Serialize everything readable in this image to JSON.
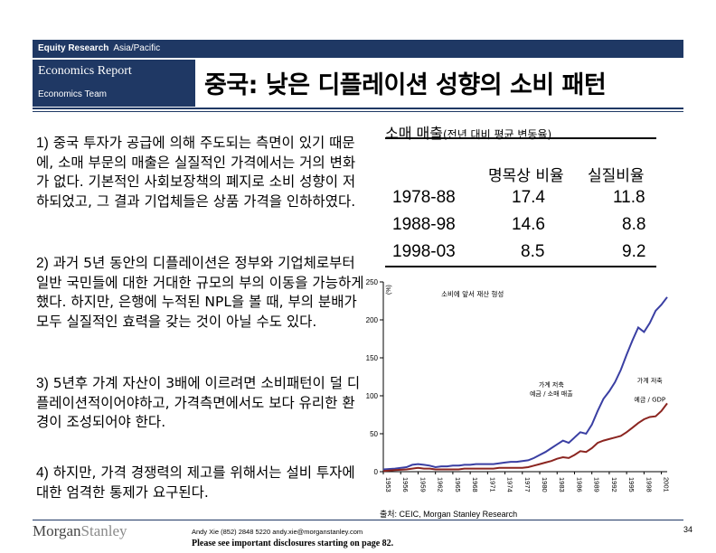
{
  "header": {
    "section": "Equity Research",
    "region": "Asia/Pacific",
    "report": "Economics Report",
    "team": "Economics Team",
    "title": "중국: 낮은 디플레이션 성향의 소비 패턴"
  },
  "points": [
    {
      "num": "1)",
      "text": "중국 투자가 공급에 의해 주도되는 측면이 있기 때문에, 소매 부문의 매출은 실질적인 가격에서는 거의 변화가 없다. 기본적인 사회보장책의 폐지로 소비 성향이 저하되었고, 그 결과 기업체들은 상품 가격을 인하하였다."
    },
    {
      "num": "2)",
      "text": "과거 5년 동안의 디플레이션은 정부와 기업체로부터 일반 국민들에 대한 거대한 규모의 부의 이동을 가능하게했다. 하지만, 은행에 누적된 NPL을 볼 때, 부의 분배가 모두 실질적인 효력을 갖는 것이 아닐 수도 있다."
    },
    {
      "num": "3)",
      "text": "5년후 가계 자산이 3배에 이르려면 소비패턴이 덜 디플레이션적이어야하고, 가격측면에서도 보다 유리한 환경이 조성되어야 한다."
    },
    {
      "num": "4)",
      "text": "하지만, 가격 경쟁력의 제고를 위해서는 설비 투자에 대한 엄격한 통제가 요구된다."
    }
  ],
  "table": {
    "title_main": "소매 매출",
    "title_sub": "(전년 대비 평균 변동율)",
    "headers": [
      "명목상 비율",
      "실질비율"
    ],
    "rows": [
      {
        "period": "1978-88",
        "nominal": "17.4",
        "real": "11.8"
      },
      {
        "period": "1988-98",
        "nominal": "14.6",
        "real": "8.8"
      },
      {
        "period": "1998-03",
        "nominal": "8.5",
        "real": "9.2"
      }
    ]
  },
  "chart_data": {
    "type": "line",
    "ylabel": "(%)",
    "ylim": [
      0,
      250
    ],
    "yticks": [
      0,
      50,
      100,
      150,
      200,
      250
    ],
    "xlim": [
      1953,
      2002
    ],
    "xticks": [
      "1953",
      "1956",
      "1959",
      "1962",
      "1965",
      "1968",
      "1971",
      "1974",
      "1977",
      "1980",
      "1983",
      "1986",
      "1989",
      "1992",
      "1995",
      "1998",
      "2001"
    ],
    "annotation_top": "소비에 앞서 재산 형성",
    "series": [
      {
        "name": "가계 저축 예금 / 소매 매출",
        "color": "#3a3fa3",
        "x": [
          1953,
          1955,
          1957,
          1958,
          1959,
          1960,
          1961,
          1962,
          1963,
          1964,
          1965,
          1966,
          1967,
          1968,
          1969,
          1970,
          1971,
          1972,
          1973,
          1974,
          1975,
          1976,
          1977,
          1978,
          1979,
          1980,
          1981,
          1982,
          1983,
          1984,
          1985,
          1986,
          1987,
          1988,
          1989,
          1990,
          1991,
          1992,
          1993,
          1994,
          1995,
          1996,
          1997,
          1998,
          1999,
          2000,
          2001,
          2002
        ],
        "y": [
          3,
          4,
          6,
          9,
          10,
          9,
          8,
          6,
          7,
          7,
          8,
          8,
          9,
          9,
          10,
          10,
          10,
          10,
          11,
          12,
          13,
          13,
          14,
          15,
          18,
          22,
          26,
          31,
          36,
          41,
          38,
          45,
          52,
          50,
          62,
          80,
          96,
          106,
          118,
          134,
          154,
          173,
          190,
          184,
          196,
          212,
          220,
          230
        ]
      },
      {
        "name": "가계 저축 예금 / GDP",
        "color": "#8b2520",
        "x": [
          1953,
          1955,
          1957,
          1958,
          1959,
          1960,
          1961,
          1962,
          1963,
          1964,
          1965,
          1966,
          1967,
          1968,
          1969,
          1970,
          1971,
          1972,
          1973,
          1974,
          1975,
          1976,
          1977,
          1978,
          1979,
          1980,
          1981,
          1982,
          1983,
          1984,
          1985,
          1986,
          1987,
          1988,
          1989,
          1990,
          1991,
          1992,
          1993,
          1994,
          1995,
          1996,
          1997,
          1998,
          1999,
          2000,
          2001,
          2002
        ],
        "y": [
          1,
          2,
          3,
          4,
          5,
          4,
          4,
          3,
          3,
          3,
          3,
          3,
          4,
          4,
          4,
          4,
          4,
          4,
          5,
          5,
          5,
          5,
          5,
          6,
          8,
          10,
          12,
          14,
          17,
          19,
          18,
          22,
          27,
          26,
          31,
          38,
          41,
          43,
          45,
          47,
          52,
          58,
          64,
          69,
          72,
          73,
          80,
          90
        ]
      }
    ],
    "labels": [
      {
        "text": "가계 저축",
        "year": 1999,
        "value": 117
      },
      {
        "text": "예금 / GDP",
        "year": 1999,
        "value": 92
      },
      {
        "text": "가계 저축",
        "year": 1982,
        "value": 112
      },
      {
        "text": "예금 / 소매 매출",
        "year": 1982,
        "value": 100
      }
    ]
  },
  "footer": {
    "source": "출처: CEIC, Morgan Stanley Research",
    "contact": "Andy Xie (852) 2848 5220  andy.xie@morganstanley.com",
    "disclosure": "Please see important disclosures starting on page 82.",
    "page": "34",
    "logo_a": "Morgan",
    "logo_b": "Stanley"
  }
}
